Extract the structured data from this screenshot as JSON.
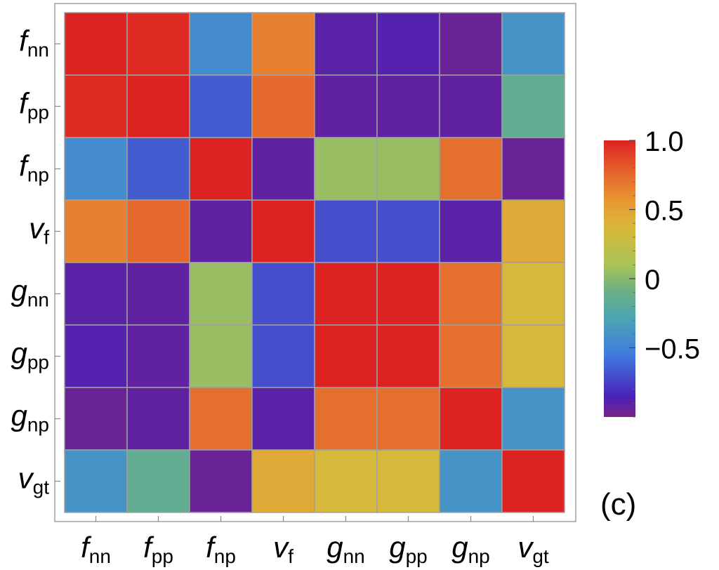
{
  "chart_data": {
    "type": "heatmap",
    "title": "",
    "panel_label": "(c)",
    "labels": [
      {
        "main": "f",
        "sub": "nn"
      },
      {
        "main": "f",
        "sub": "pp"
      },
      {
        "main": "f",
        "sub": "np"
      },
      {
        "main": "v",
        "sub": "f"
      },
      {
        "main": "g",
        "sub": "nn"
      },
      {
        "main": "g",
        "sub": "pp"
      },
      {
        "main": "g",
        "sub": "np"
      },
      {
        "main": "v",
        "sub": "gt"
      }
    ],
    "matrix": [
      [
        1.0,
        0.97,
        -0.45,
        0.65,
        -0.9,
        -0.88,
        -0.95,
        -0.4
      ],
      [
        0.97,
        1.0,
        -0.65,
        0.75,
        -0.92,
        -0.92,
        -0.92,
        -0.15
      ],
      [
        -0.45,
        -0.65,
        1.0,
        -0.92,
        0.05,
        0.05,
        0.72,
        -0.95
      ],
      [
        0.65,
        0.75,
        -0.92,
        1.0,
        -0.7,
        -0.7,
        -0.9,
        0.45
      ],
      [
        -0.9,
        -0.92,
        0.05,
        -0.7,
        1.0,
        1.0,
        0.72,
        0.35
      ],
      [
        -0.88,
        -0.92,
        0.05,
        -0.7,
        1.0,
        1.0,
        0.72,
        0.35
      ],
      [
        -0.95,
        -0.92,
        0.72,
        -0.9,
        0.72,
        0.72,
        1.0,
        -0.4
      ],
      [
        -0.4,
        -0.15,
        -0.95,
        0.45,
        0.35,
        0.35,
        -0.4,
        1.0
      ]
    ],
    "colorbar": {
      "range": [
        -1,
        1
      ],
      "ticks": [
        {
          "value": 1.0,
          "label": "1.0"
        },
        {
          "value": 0.5,
          "label": "0.5"
        },
        {
          "value": 0,
          "label": "0"
        },
        {
          "value": -0.5,
          "label": "−0.5"
        }
      ],
      "stops": [
        {
          "value": -1.0,
          "color": "#7a2286"
        },
        {
          "value": -0.85,
          "color": "#4a22b8"
        },
        {
          "value": -0.55,
          "color": "#3f7bde"
        },
        {
          "value": -0.3,
          "color": "#4aa3b5"
        },
        {
          "value": -0.1,
          "color": "#6aaf85"
        },
        {
          "value": 0.1,
          "color": "#a8c257"
        },
        {
          "value": 0.35,
          "color": "#d6b93a"
        },
        {
          "value": 0.55,
          "color": "#e89a33"
        },
        {
          "value": 0.75,
          "color": "#e5682c"
        },
        {
          "value": 1.0,
          "color": "#dd2222"
        }
      ]
    },
    "colors": {
      "grid_line": "#a0a0a0",
      "frame": "#a0a0a0"
    }
  }
}
